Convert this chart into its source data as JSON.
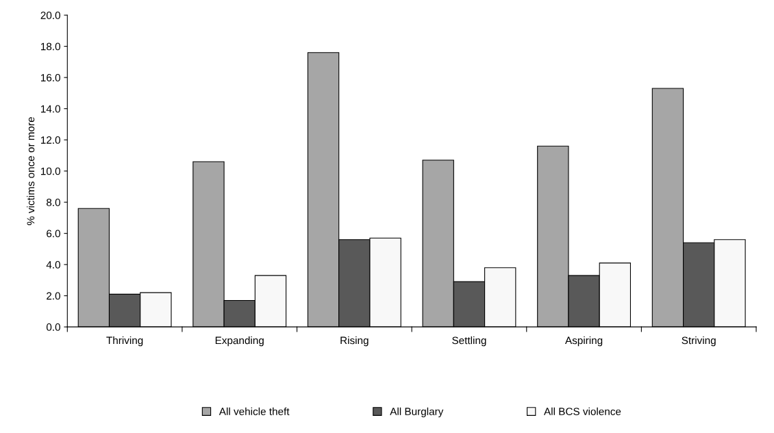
{
  "chart_data": {
    "type": "bar",
    "ylabel": "% victims once or more",
    "categories": [
      "Thriving",
      "Expanding",
      "Rising",
      "Settling",
      "Aspiring",
      "Striving"
    ],
    "series": [
      {
        "name": "All vehicle theft",
        "color": "#a6a6a6",
        "values": [
          7.6,
          10.6,
          17.6,
          10.7,
          11.6,
          15.3
        ]
      },
      {
        "name": "All Burglary",
        "color": "#595959",
        "values": [
          2.1,
          1.7,
          5.6,
          2.9,
          3.3,
          5.4
        ]
      },
      {
        "name": "All BCS violence",
        "color": "#f8f8f8",
        "values": [
          2.2,
          3.3,
          5.7,
          3.8,
          4.1,
          5.6
        ]
      }
    ],
    "ylim": [
      0,
      20
    ],
    "yticks": [
      {
        "value": 0,
        "label": "0.0"
      },
      {
        "value": 2,
        "label": "2.0"
      },
      {
        "value": 4,
        "label": "4.0"
      },
      {
        "value": 6,
        "label": "6.0"
      },
      {
        "value": 8,
        "label": "8.0"
      },
      {
        "value": 10,
        "label": "10.0"
      },
      {
        "value": 12,
        "label": "12.0"
      },
      {
        "value": 14,
        "label": "14.0"
      },
      {
        "value": 16,
        "label": "16.0"
      },
      {
        "value": 18,
        "label": "18.0"
      },
      {
        "value": 20,
        "label": "20.0"
      }
    ],
    "grid": false,
    "legend": "bottom"
  }
}
